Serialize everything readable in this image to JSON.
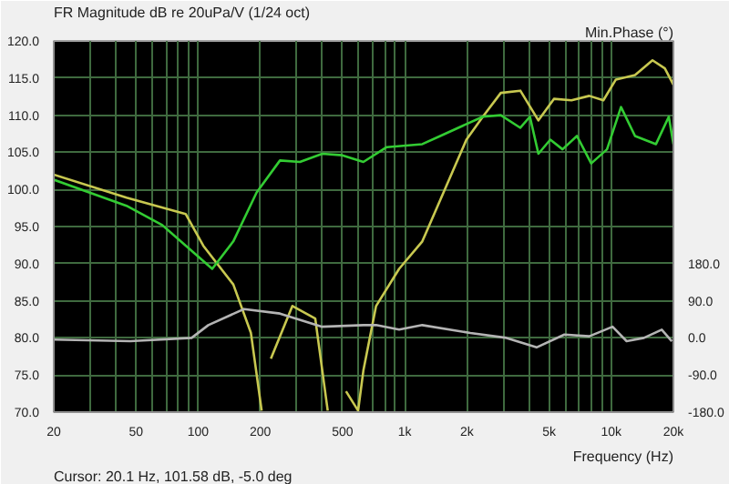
{
  "chart_data": {
    "type": "line",
    "title": "FR Magnitude dB re 20uPa/V (1/24 oct)",
    "xlabel": "Frequency (Hz)",
    "y2label": "Min.Phase (°)",
    "annotations": [
      "Cursor: 20.1 Hz, 101.58 dB, -5.0 deg"
    ],
    "log": "x",
    "grid": true,
    "xlim": [
      20,
      20000
    ],
    "ylim": [
      70,
      120
    ],
    "y2lim": [
      -180,
      720
    ],
    "xticks": [
      {
        "value": 20,
        "label": "20"
      },
      {
        "value": 30,
        "label": null
      },
      {
        "value": 40,
        "label": null
      },
      {
        "value": 50,
        "label": "50"
      },
      {
        "value": 60,
        "label": null
      },
      {
        "value": 70,
        "label": null
      },
      {
        "value": 80,
        "label": null
      },
      {
        "value": 90,
        "label": null
      },
      {
        "value": 100,
        "label": "100"
      },
      {
        "value": 200,
        "label": "200"
      },
      {
        "value": 300,
        "label": null
      },
      {
        "value": 400,
        "label": null
      },
      {
        "value": 500,
        "label": "500"
      },
      {
        "value": 600,
        "label": null
      },
      {
        "value": 700,
        "label": null
      },
      {
        "value": 800,
        "label": null
      },
      {
        "value": 900,
        "label": null
      },
      {
        "value": 1000,
        "label": "1k"
      },
      {
        "value": 2000,
        "label": "2k"
      },
      {
        "value": 3000,
        "label": null
      },
      {
        "value": 4000,
        "label": null
      },
      {
        "value": 5000,
        "label": "5k"
      },
      {
        "value": 6000,
        "label": null
      },
      {
        "value": 7000,
        "label": null
      },
      {
        "value": 8000,
        "label": null
      },
      {
        "value": 9000,
        "label": null
      },
      {
        "value": 10000,
        "label": "10k"
      },
      {
        "value": 20000,
        "label": "20k"
      }
    ],
    "yticks": [
      {
        "value": 70,
        "label": "70.0"
      },
      {
        "value": 75,
        "label": "75.0"
      },
      {
        "value": 80,
        "label": "80.0"
      },
      {
        "value": 85,
        "label": "85.0"
      },
      {
        "value": 90,
        "label": "90.0"
      },
      {
        "value": 95,
        "label": "95.0"
      },
      {
        "value": 100,
        "label": "100.0"
      },
      {
        "value": 105,
        "label": "105.0"
      },
      {
        "value": 110,
        "label": "110.0"
      },
      {
        "value": 115,
        "label": "115.0"
      },
      {
        "value": 120,
        "label": "120.0"
      }
    ],
    "y2ticks": [
      {
        "value": -180,
        "label": "-180.0"
      },
      {
        "value": -90,
        "label": "-90.0"
      },
      {
        "value": 0,
        "label": "0.0"
      },
      {
        "value": 90,
        "label": "90.0"
      },
      {
        "value": 180,
        "label": "180.0"
      }
    ],
    "series": [
      {
        "color": "#c8c850",
        "x": [
          20,
          45,
          87,
          106,
          148,
          180,
          203,
          210,
          225,
          286,
          369,
          424,
          460,
          520,
          595,
          631,
          727,
          940,
          1217,
          1990,
          2390,
          2920,
          3630,
          4440,
          5280,
          6420,
          7830,
          9160,
          10530,
          13040,
          15840,
          18170,
          20000
        ],
        "values": [
          102.0,
          98.9,
          96.7,
          92.4,
          87.2,
          80.7,
          70.2,
          null,
          77.2,
          84.3,
          82.6,
          70.2,
          null,
          72.8,
          70.2,
          75.6,
          84.3,
          89.3,
          93.0,
          106.7,
          109.8,
          113.0,
          113.3,
          109.3,
          112.2,
          112.0,
          112.6,
          112.0,
          114.8,
          115.4,
          117.4,
          116.3,
          114.1
        ]
      },
      {
        "color": "#33cc33",
        "x": [
          20,
          45,
          67,
          117,
          148,
          192,
          249,
          311,
          399,
          499,
          631,
          819,
          1217,
          1486,
          2392,
          2920,
          3630,
          4040,
          4440,
          5070,
          5810,
          6820,
          8000,
          9540,
          11150,
          13040,
          16470,
          19000,
          20000
        ],
        "values": [
          101.3,
          97.8,
          95.2,
          89.3,
          93.0,
          99.6,
          103.9,
          103.7,
          104.8,
          104.6,
          103.7,
          105.7,
          106.1,
          107.2,
          109.8,
          110.0,
          108.3,
          109.8,
          104.8,
          106.7,
          105.4,
          107.2,
          103.5,
          105.4,
          111.1,
          107.2,
          106.1,
          109.8,
          106.1
        ]
      },
      {
        "color": "#b4b4b4",
        "axis": "y2",
        "x": [
          20,
          47,
          93,
          112,
          167,
          249,
          399,
          631,
          727,
          940,
          1217,
          2080,
          3110,
          4350,
          5930,
          7830,
          10150,
          11870,
          14400,
          17560,
          19650
        ],
        "values": [
          -4,
          -8,
          0,
          31,
          70,
          59,
          27,
          31,
          31,
          20,
          31,
          12,
          0,
          -23,
          8,
          4,
          27,
          -8,
          0,
          20,
          -8
        ]
      }
    ]
  }
}
